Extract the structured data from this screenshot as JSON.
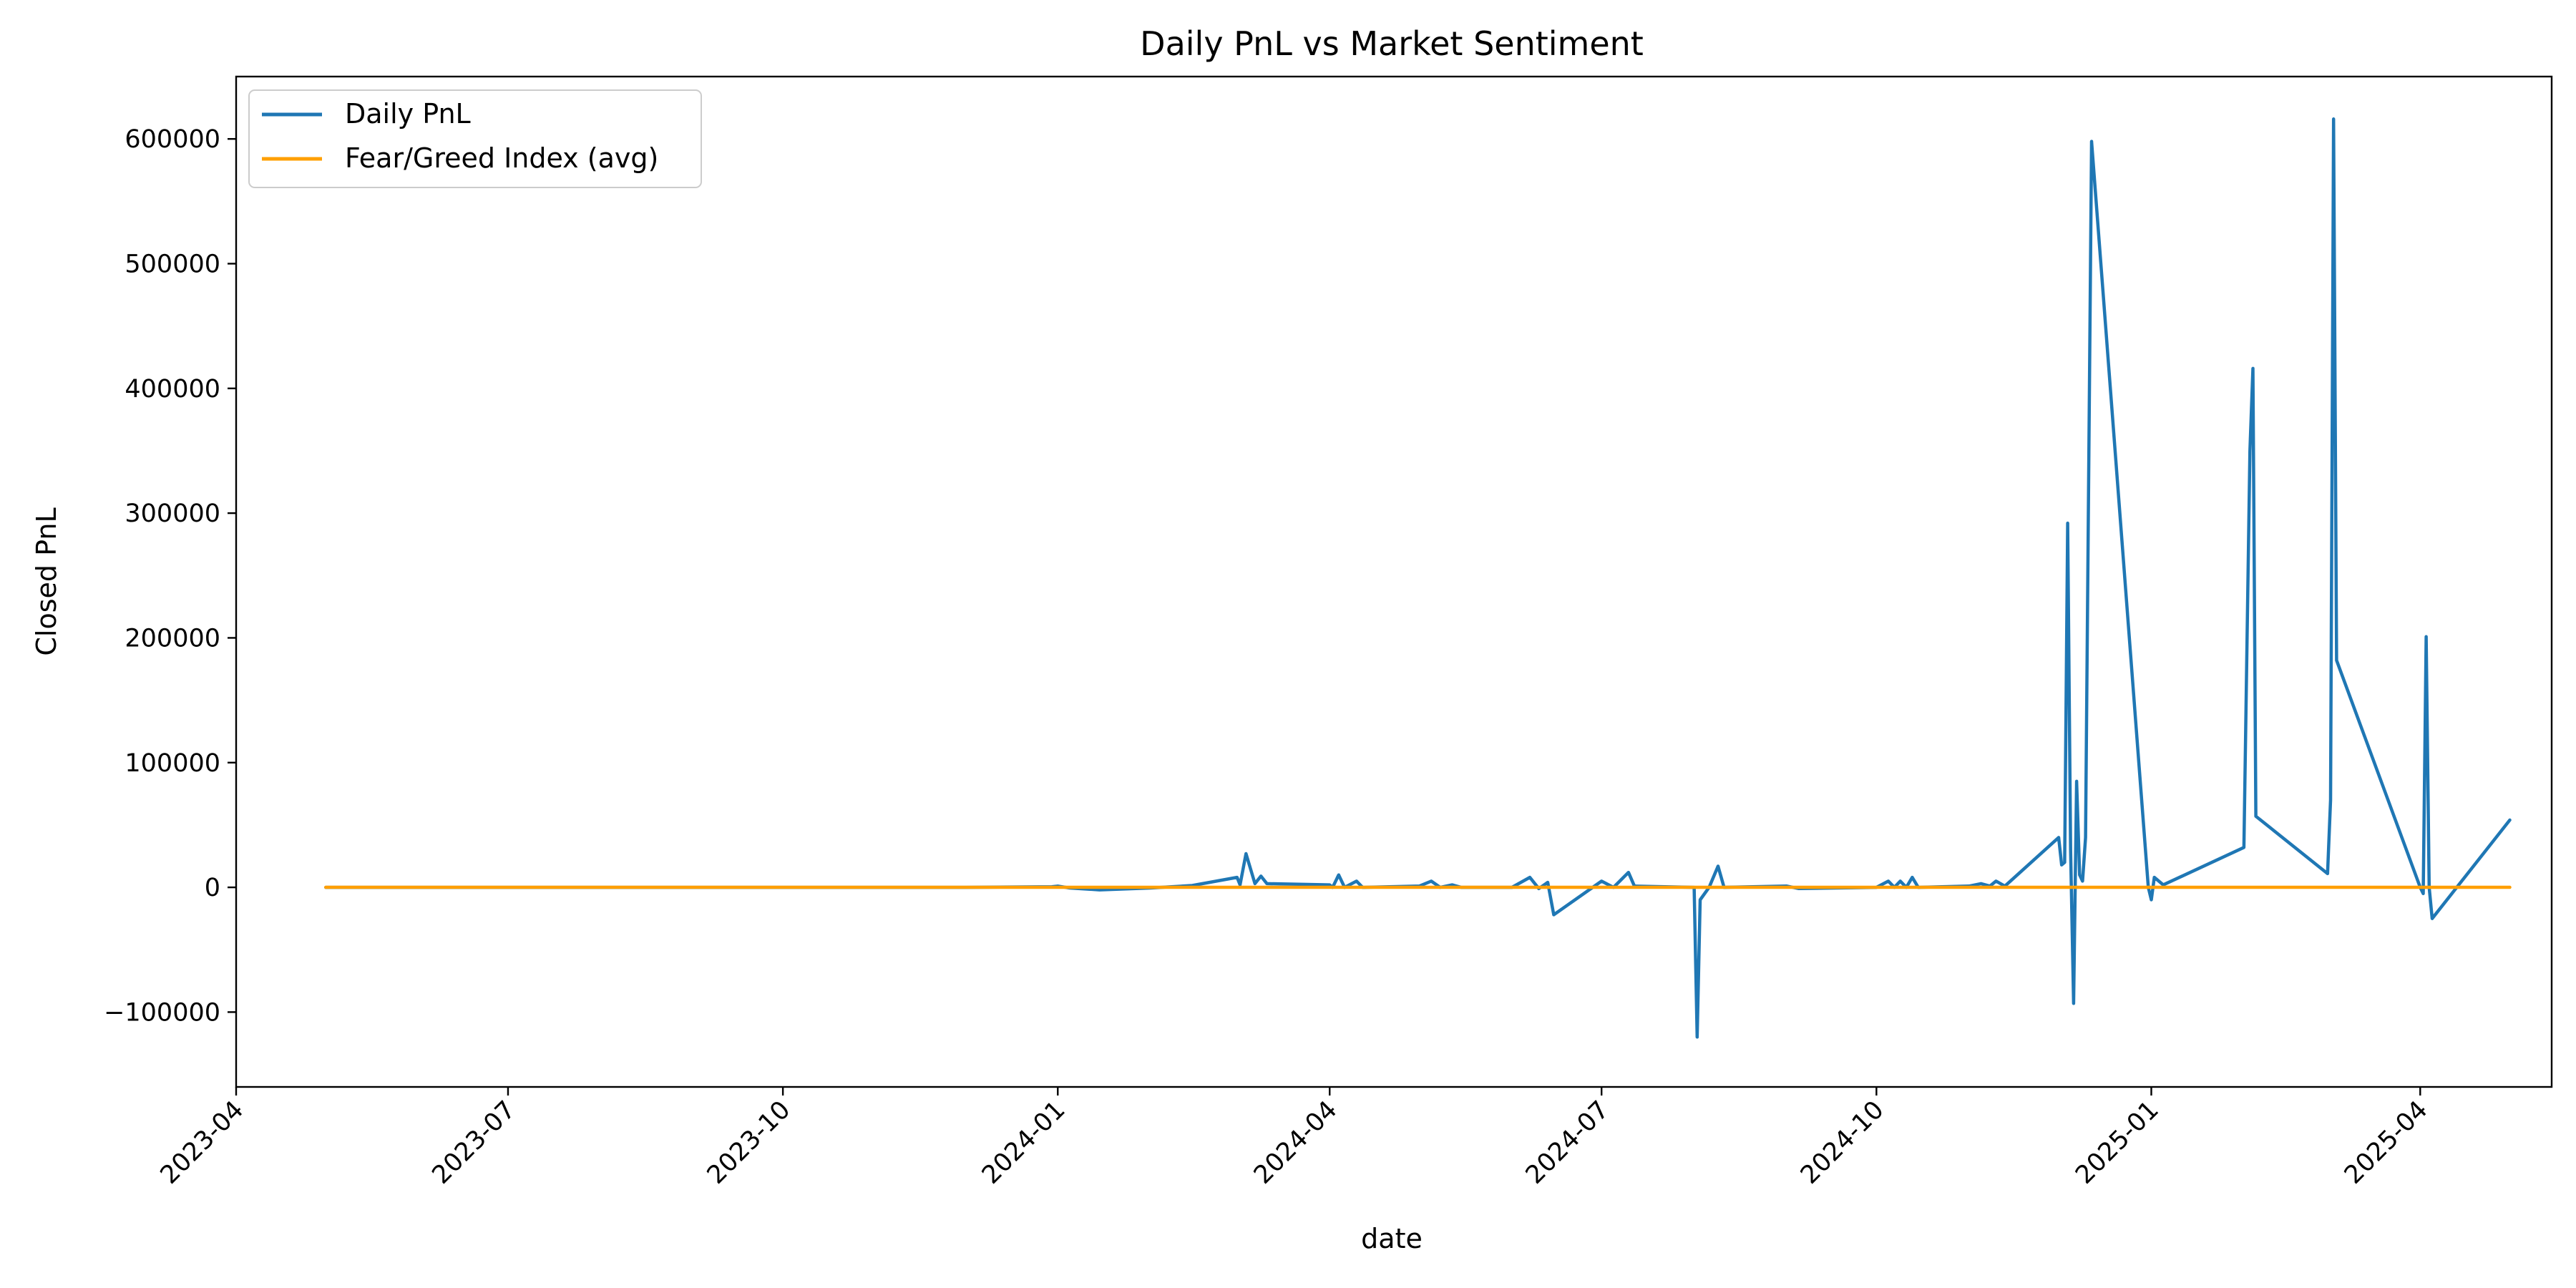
{
  "chart_data": {
    "type": "line",
    "title": "Daily PnL vs Market Sentiment",
    "xlabel": "date",
    "ylabel": "Closed PnL",
    "xlim": [
      "2023-04-01",
      "2025-05-15"
    ],
    "ylim": [
      -160000,
      650000
    ],
    "x_ticks": [
      "2023-04",
      "2023-07",
      "2023-10",
      "2024-01",
      "2024-04",
      "2024-07",
      "2024-10",
      "2025-01",
      "2025-04"
    ],
    "y_ticks": [
      -100000,
      0,
      100000,
      200000,
      300000,
      400000,
      500000,
      600000
    ],
    "y_tick_labels": [
      "−100000",
      "0",
      "100000",
      "200000",
      "300000",
      "400000",
      "500000",
      "600000"
    ],
    "grid": false,
    "legend_position": "upper-left",
    "series": [
      {
        "name": "Daily PnL",
        "color": "#1f77b4",
        "points": [
          [
            "2023-05-01",
            0
          ],
          [
            "2023-12-01",
            0
          ],
          [
            "2023-12-30",
            500
          ],
          [
            "2024-01-01",
            1000
          ],
          [
            "2024-01-05",
            -500
          ],
          [
            "2024-01-15",
            -2000
          ],
          [
            "2024-02-01",
            -500
          ],
          [
            "2024-02-15",
            1500
          ],
          [
            "2024-03-01",
            8000
          ],
          [
            "2024-03-02",
            2000
          ],
          [
            "2024-03-04",
            27000
          ],
          [
            "2024-03-07",
            3000
          ],
          [
            "2024-03-09",
            9000
          ],
          [
            "2024-03-11",
            3000
          ],
          [
            "2024-04-01",
            2000
          ],
          [
            "2024-04-02",
            0
          ],
          [
            "2024-04-04",
            10000
          ],
          [
            "2024-04-06",
            0
          ],
          [
            "2024-04-10",
            5000
          ],
          [
            "2024-04-12",
            0
          ],
          [
            "2024-05-01",
            1000
          ],
          [
            "2024-05-05",
            5000
          ],
          [
            "2024-05-08",
            0
          ],
          [
            "2024-05-12",
            2000
          ],
          [
            "2024-05-15",
            0
          ],
          [
            "2024-06-01",
            0
          ],
          [
            "2024-06-07",
            8000
          ],
          [
            "2024-06-10",
            -1000
          ],
          [
            "2024-06-13",
            4000
          ],
          [
            "2024-06-15",
            -22000
          ],
          [
            "2024-07-01",
            5000
          ],
          [
            "2024-07-05",
            0
          ],
          [
            "2024-07-10",
            12000
          ],
          [
            "2024-07-12",
            1000
          ],
          [
            "2024-08-01",
            0
          ],
          [
            "2024-08-02",
            -120000
          ],
          [
            "2024-08-03",
            -10000
          ],
          [
            "2024-08-06",
            0
          ],
          [
            "2024-08-09",
            17000
          ],
          [
            "2024-08-11",
            0
          ],
          [
            "2024-09-01",
            1000
          ],
          [
            "2024-09-05",
            -1000
          ],
          [
            "2024-10-01",
            0
          ],
          [
            "2024-10-05",
            5000
          ],
          [
            "2024-10-07",
            0
          ],
          [
            "2024-10-09",
            5000
          ],
          [
            "2024-10-11",
            0
          ],
          [
            "2024-10-13",
            8000
          ],
          [
            "2024-10-15",
            0
          ],
          [
            "2024-11-01",
            1000
          ],
          [
            "2024-11-05",
            3000
          ],
          [
            "2024-11-08",
            1000
          ],
          [
            "2024-11-10",
            5000
          ],
          [
            "2024-11-13",
            1000
          ],
          [
            "2024-12-01",
            40000
          ],
          [
            "2024-12-02",
            18000
          ],
          [
            "2024-12-03",
            20000
          ],
          [
            "2024-12-04",
            292000
          ],
          [
            "2024-12-05",
            30000
          ],
          [
            "2024-12-06",
            -93000
          ],
          [
            "2024-12-07",
            85000
          ],
          [
            "2024-12-08",
            10000
          ],
          [
            "2024-12-09",
            5000
          ],
          [
            "2024-12-10",
            40000
          ],
          [
            "2024-12-12",
            598000
          ],
          [
            "2024-12-31",
            0
          ],
          [
            "2025-01-01",
            -10000
          ],
          [
            "2025-01-02",
            8000
          ],
          [
            "2025-01-05",
            2000
          ],
          [
            "2025-02-01",
            32000
          ],
          [
            "2025-02-03",
            350000
          ],
          [
            "2025-02-04",
            416000
          ],
          [
            "2025-02-05",
            57000
          ],
          [
            "2025-03-01",
            11000
          ],
          [
            "2025-03-02",
            70000
          ],
          [
            "2025-03-03",
            616000
          ],
          [
            "2025-03-04",
            182000
          ],
          [
            "2025-04-01",
            0
          ],
          [
            "2025-04-02",
            -5000
          ],
          [
            "2025-04-03",
            201000
          ],
          [
            "2025-04-04",
            0
          ],
          [
            "2025-04-05",
            -25000
          ],
          [
            "2025-05-01",
            54000
          ]
        ]
      },
      {
        "name": "Fear/Greed Index (avg)",
        "color": "#ff9f00",
        "points": [
          [
            "2023-05-01",
            50
          ],
          [
            "2025-05-01",
            50
          ]
        ]
      }
    ]
  }
}
